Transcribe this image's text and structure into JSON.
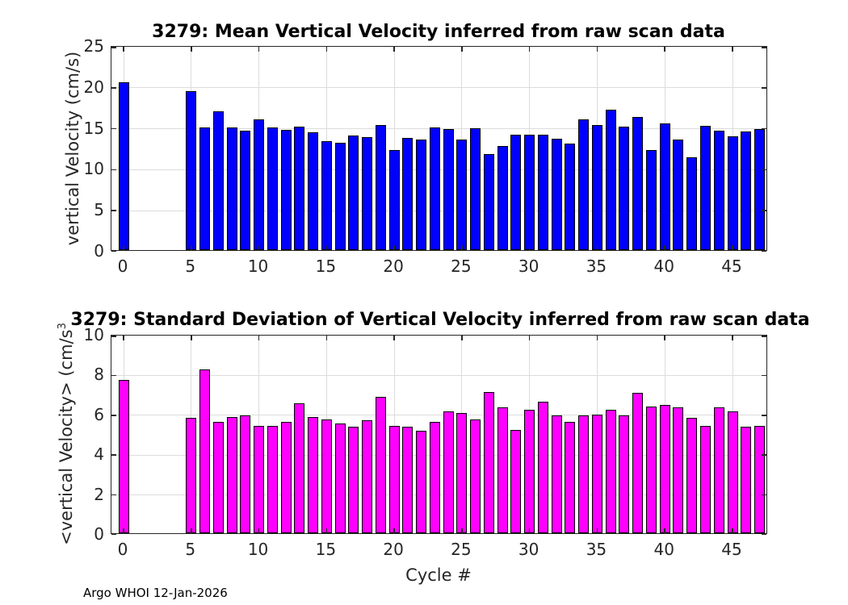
{
  "figure": {
    "annotation": "Argo WHOI 12-Jan-2026",
    "background": "#ffffff",
    "colors": {
      "axis": "#262626",
      "grid": "#dcdcdc",
      "mean_bar": "#0000ff",
      "std_bar": "#ff00ff",
      "bar_edge": "#000000"
    }
  },
  "chart_data": [
    {
      "type": "bar",
      "title": "3279: Mean Vertical Velocity inferred from raw scan data",
      "ylabel": "vertical Velocity (cm/s)",
      "ylabel_sup": "",
      "xlabel": "",
      "bar_color": "#0000ff",
      "bar_edge_color": "#000000",
      "grid": true,
      "legend": "none",
      "ylim": [
        0,
        25
      ],
      "yticks": [
        0,
        5,
        10,
        15,
        20,
        25
      ],
      "xticks": [
        0,
        5,
        10,
        15,
        20,
        25,
        30,
        35,
        40,
        45
      ],
      "x": [
        0,
        5,
        6,
        7,
        8,
        9,
        10,
        11,
        12,
        13,
        14,
        15,
        16,
        17,
        18,
        19,
        20,
        21,
        22,
        23,
        24,
        25,
        26,
        27,
        28,
        29,
        30,
        31,
        32,
        33,
        34,
        35,
        36,
        37,
        38,
        39,
        40,
        41,
        42,
        43,
        44,
        45,
        46,
        47
      ],
      "values": [
        20.5,
        19.4,
        15.0,
        16.9,
        15.0,
        14.6,
        15.9,
        15.0,
        14.7,
        15.1,
        14.4,
        13.3,
        13.1,
        14.0,
        13.8,
        15.3,
        12.2,
        13.7,
        13.5,
        15.0,
        14.8,
        13.5,
        14.9,
        11.7,
        12.7,
        14.1,
        14.1,
        14.1,
        13.6,
        13.0,
        15.9,
        15.3,
        17.1,
        15.1,
        16.2,
        12.2,
        15.5,
        13.5,
        11.3,
        15.2,
        14.6,
        13.9,
        14.5,
        14.8
      ]
    },
    {
      "type": "bar",
      "title": "3279: Standard Deviation of Vertical Velocity inferred from raw scan data",
      "ylabel": "<vertical Velocity> (cm/s",
      "ylabel_sup": "3",
      "xlabel": "Cycle #",
      "bar_color": "#ff00ff",
      "bar_edge_color": "#000000",
      "grid": true,
      "legend": "none",
      "ylim": [
        0,
        10
      ],
      "yticks": [
        0,
        2,
        4,
        6,
        8,
        10
      ],
      "xticks": [
        0,
        5,
        10,
        15,
        20,
        25,
        30,
        35,
        40,
        45
      ],
      "x": [
        0,
        5,
        6,
        7,
        8,
        9,
        10,
        11,
        12,
        13,
        14,
        15,
        16,
        17,
        18,
        19,
        20,
        21,
        22,
        23,
        24,
        25,
        26,
        27,
        28,
        29,
        30,
        31,
        32,
        33,
        34,
        35,
        36,
        37,
        38,
        39,
        40,
        41,
        42,
        43,
        44,
        45,
        46,
        47
      ],
      "values": [
        7.7,
        5.8,
        8.2,
        5.6,
        5.85,
        5.9,
        5.4,
        5.4,
        5.6,
        6.5,
        5.85,
        5.7,
        5.5,
        5.35,
        5.65,
        6.85,
        5.4,
        5.35,
        5.15,
        5.6,
        6.1,
        6.05,
        5.7,
        7.1,
        6.3,
        5.2,
        6.2,
        6.6,
        5.9,
        5.6,
        5.9,
        5.95,
        6.2,
        5.9,
        7.05,
        6.35,
        6.45,
        6.3,
        5.8,
        5.4,
        6.3,
        6.1,
        5.35,
        5.4
      ]
    }
  ]
}
